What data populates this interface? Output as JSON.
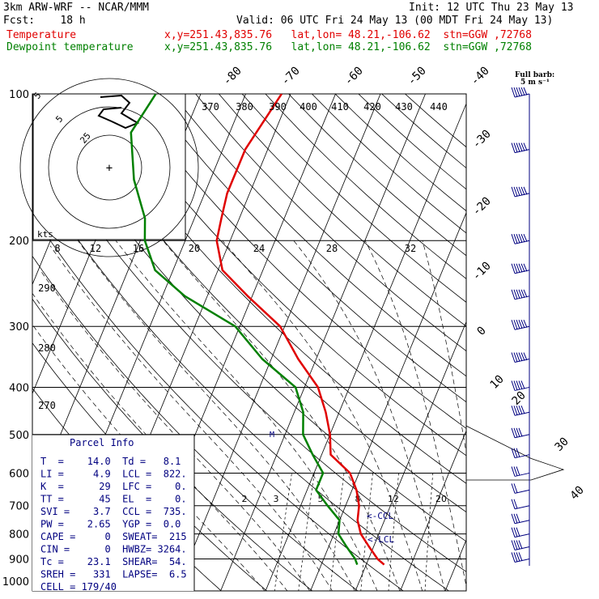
{
  "header": {
    "model": "3km ARW-WRF -- NCAR/MMM",
    "init": "Init: 12 UTC Thu 23 May 13",
    "fcst": "Fcst:    18 h",
    "valid": "Valid: 06 UTC Fri 24 May 13 (00 MDT Fri 24 May 13)",
    "temp_label": "Temperature",
    "temp_info": "x,y=251.43,835.76   lat,lon= 48.21,-106.62  stn=GGW ,72768",
    "dew_label": "Dewpoint temperature",
    "dew_info": "x,y=251.43,835.76   lat,lon= 48.21,-106.62  stn=GGW ,72768"
  },
  "colors": {
    "temperature": "#e00000",
    "dewpoint": "#008000",
    "parcel_text": "#000080",
    "grid": "#000000"
  },
  "barb_legend": {
    "line1": "Full barb:",
    "line2": "5 m s⁻¹"
  },
  "hodograph": {
    "kts_label": "kts",
    "ring_labels": [
      "5",
      "5",
      "25"
    ],
    "plus": "+"
  },
  "parcel_info": {
    "title": "Parcel Info",
    "rows": [
      "T  =    14.0  Td =   8.1",
      "LI =     4.9  LCL =  822.",
      "K  =      29  LFC =    0.",
      "TT =      45  EL  =    0.",
      "SVI =    3.7  CCL =  735.",
      "PW =    2.65  YGP =  0.0",
      "CAPE =     0  SWEAT=  215",
      "CIN =      0  HWBZ= 3264.",
      "Tc =    23.1  SHEAR=  54.",
      "SREH =   331  LAPSE=  6.5",
      "CELL = 179/40"
    ]
  },
  "annotations": {
    "ccl": "<-CCL",
    "lcl": "<-LCL",
    "marker_m": "M"
  },
  "chart_data": {
    "type": "line",
    "diagram": "skew-T log-p",
    "pressure_levels": [
      100,
      200,
      300,
      400,
      500,
      600,
      700,
      800,
      900,
      1000
    ],
    "isotherm_labels": [
      "-80",
      "-70",
      "-60",
      "-50",
      "-40",
      "-30",
      "-20",
      "-10",
      "0",
      "10",
      "20",
      "30",
      "40"
    ],
    "theta_labels": [
      "370",
      "380",
      "390",
      "400",
      "410",
      "420",
      "430",
      "440"
    ],
    "theta_lower_labels": [
      "290",
      "280",
      "270"
    ],
    "mixing_ratio_labels": [
      "2",
      "3",
      "5",
      "8",
      "12",
      "20"
    ],
    "hodo_speed_labels": [
      "8",
      "12",
      "16",
      "20",
      "24",
      "28",
      "32"
    ],
    "series": [
      {
        "name": "Temperature",
        "points": [
          [
            100,
            -52
          ],
          [
            130,
            -55
          ],
          [
            160,
            -55
          ],
          [
            180,
            -54
          ],
          [
            200,
            -53
          ],
          [
            230,
            -49
          ],
          [
            260,
            -41
          ],
          [
            300,
            -31
          ],
          [
            350,
            -24
          ],
          [
            400,
            -17
          ],
          [
            450,
            -13
          ],
          [
            500,
            -10
          ],
          [
            550,
            -8
          ],
          [
            600,
            -2
          ],
          [
            650,
            1
          ],
          [
            700,
            3
          ],
          [
            750,
            4
          ],
          [
            800,
            6
          ],
          [
            850,
            9
          ],
          [
            900,
            12
          ],
          [
            925,
            14
          ]
        ]
      },
      {
        "name": "Dewpoint temperature",
        "points": [
          [
            100,
            -80
          ],
          [
            120,
            -82
          ],
          [
            150,
            -77
          ],
          [
            180,
            -71
          ],
          [
            200,
            -69
          ],
          [
            230,
            -64
          ],
          [
            260,
            -55
          ],
          [
            300,
            -41
          ],
          [
            350,
            -32
          ],
          [
            400,
            -22
          ],
          [
            450,
            -18
          ],
          [
            500,
            -16
          ],
          [
            550,
            -12
          ],
          [
            600,
            -8
          ],
          [
            650,
            -8
          ],
          [
            700,
            -4
          ],
          [
            750,
            0
          ],
          [
            800,
            1
          ],
          [
            850,
            4
          ],
          [
            900,
            7
          ],
          [
            925,
            8
          ]
        ]
      }
    ],
    "wind_profile": [
      [
        100,
        270,
        55
      ],
      [
        130,
        270,
        60
      ],
      [
        160,
        265,
        70
      ],
      [
        200,
        260,
        75
      ],
      [
        230,
        255,
        75
      ],
      [
        260,
        255,
        70
      ],
      [
        300,
        250,
        60
      ],
      [
        350,
        245,
        55
      ],
      [
        400,
        240,
        50
      ],
      [
        450,
        230,
        45
      ],
      [
        500,
        225,
        40
      ],
      [
        550,
        210,
        30
      ],
      [
        600,
        200,
        25
      ],
      [
        650,
        190,
        20
      ],
      [
        700,
        175,
        20
      ],
      [
        750,
        165,
        25
      ],
      [
        800,
        160,
        30
      ],
      [
        850,
        150,
        35
      ],
      [
        900,
        140,
        40
      ]
    ]
  }
}
